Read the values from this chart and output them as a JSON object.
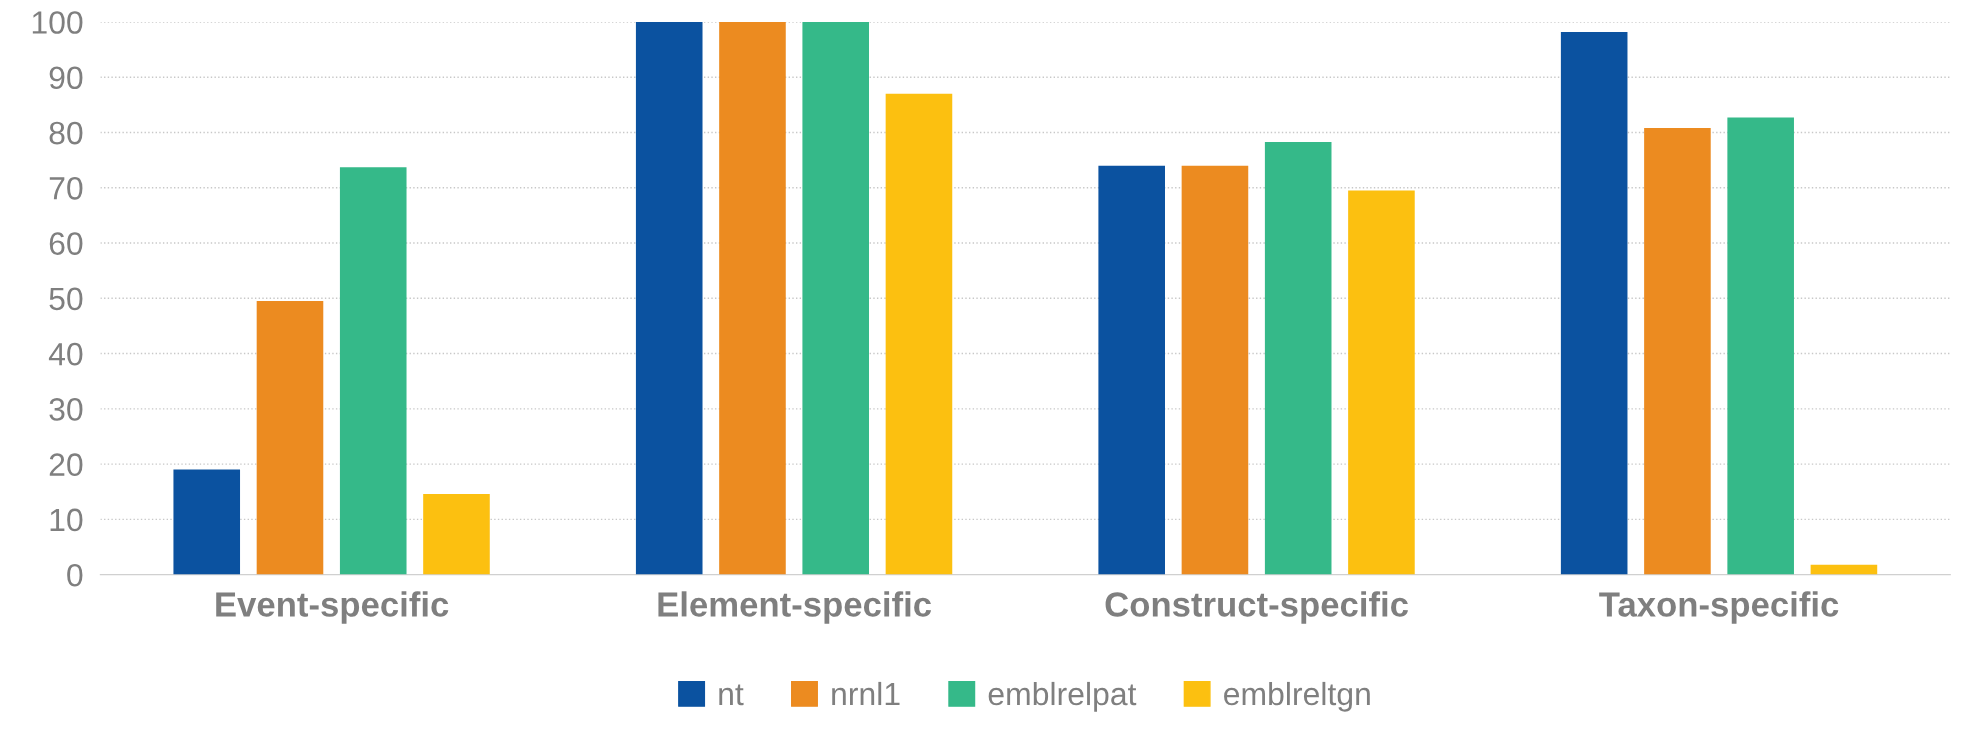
{
  "chart_data": {
    "type": "bar",
    "categories": [
      "Event-specific",
      "Element-specific",
      "Construct-specific",
      "Taxon-specific"
    ],
    "series": [
      {
        "name": "nt",
        "color": "#0b52a0",
        "values": [
          19,
          100,
          74,
          98.2
        ]
      },
      {
        "name": "nrnl1",
        "color": "#ec8b20",
        "values": [
          49.5,
          100,
          74,
          80.8
        ]
      },
      {
        "name": "emblrelpat",
        "color": "#35b989",
        "values": [
          73.7,
          100,
          78.3,
          82.7
        ]
      },
      {
        "name": "emblreltgn",
        "color": "#fcc010",
        "values": [
          14.6,
          87,
          69.5,
          1.8
        ]
      }
    ],
    "ylim": [
      0,
      100
    ],
    "yticks": [
      0,
      10,
      20,
      30,
      40,
      50,
      60,
      70,
      80,
      90,
      100
    ],
    "grid": "y",
    "legend": "bottom"
  }
}
